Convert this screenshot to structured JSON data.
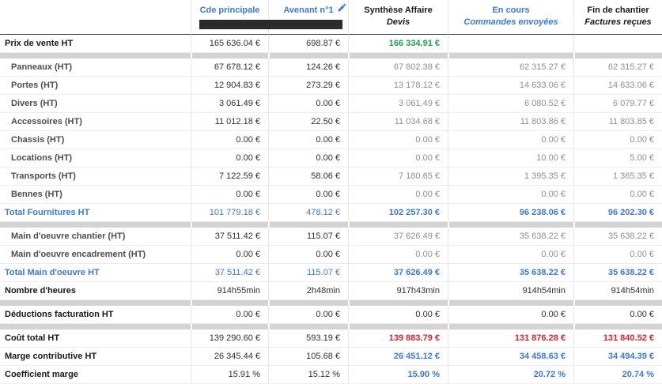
{
  "header": {
    "columns": [
      {
        "key": "labels",
        "label": ""
      },
      {
        "key": "cde-principale",
        "label": "Cde principale",
        "style": "blue",
        "redacted": true
      },
      {
        "key": "avenant-1",
        "label": "Avenant n°1",
        "style": "blue",
        "redacted": true,
        "has_edit_icon": true
      },
      {
        "key": "synthese-affaire",
        "line1": "Synthèse Affaire",
        "line2": "Devis",
        "style": "dark"
      },
      {
        "key": "en-cours",
        "line1": "En cours",
        "line2": "Commandes envoyées",
        "style": "blue"
      },
      {
        "key": "fin-de-chantier",
        "line1": "Fin de chantier",
        "line2": "Factures reçues",
        "style": "dark"
      }
    ],
    "edit_icon": "pencil-icon"
  },
  "colors": {
    "accent_blue": "#3b79dc",
    "positive_green": "#17a34a",
    "negative_red": "#e0242f",
    "redaction_bar": "#2b2b2b",
    "separator_gray": "#d3d3d3"
  },
  "table": {
    "rows": [
      {
        "type": "main",
        "label": "Prix de vente HT",
        "values": [
          "165 636.04 €",
          "698.87 €",
          "166 334.91 €",
          "",
          ""
        ],
        "styles": [
          "dark",
          "dark",
          "green",
          "none",
          "none"
        ]
      },
      {
        "type": "sep"
      },
      {
        "type": "sub",
        "label": "Panneaux (HT)",
        "values": [
          "67 678.12 €",
          "124.26 €",
          "67 802.38 €",
          "62 315.27 €",
          "62 315.27 €"
        ],
        "styles": [
          "dark",
          "dark",
          "gray",
          "gray",
          "gray"
        ]
      },
      {
        "type": "sub",
        "label": "Portes (HT)",
        "values": [
          "12 904.83 €",
          "273.29 €",
          "13 178.12 €",
          "14 633.06 €",
          "14 633.06 €"
        ],
        "styles": [
          "dark",
          "dark",
          "gray",
          "gray",
          "gray"
        ]
      },
      {
        "type": "sub",
        "label": "Divers (HT)",
        "values": [
          "3 061.49 €",
          "0.00 €",
          "3 061.49 €",
          "6 080.52 €",
          "6 079.77 €"
        ],
        "styles": [
          "dark",
          "dark",
          "gray",
          "gray",
          "gray"
        ]
      },
      {
        "type": "sub",
        "label": "Accessoires (HT)",
        "values": [
          "11 012.18 €",
          "22.50 €",
          "11 034.68 €",
          "11 803.86 €",
          "11 803.85 €"
        ],
        "styles": [
          "dark",
          "dark",
          "gray",
          "gray",
          "gray"
        ]
      },
      {
        "type": "sub",
        "label": "Chassis (HT)",
        "values": [
          "0.00 €",
          "0.00 €",
          "0.00 €",
          "0.00 €",
          "0.00 €"
        ],
        "styles": [
          "dark",
          "dark",
          "gray",
          "gray",
          "gray"
        ]
      },
      {
        "type": "sub",
        "label": "Locations (HT)",
        "values": [
          "0.00 €",
          "0.00 €",
          "0.00 €",
          "10.00 €",
          "5.00 €"
        ],
        "styles": [
          "dark",
          "dark",
          "gray",
          "gray",
          "gray"
        ]
      },
      {
        "type": "sub",
        "label": "Transports (HT)",
        "values": [
          "7 122.59 €",
          "58.06 €",
          "7 180.65 €",
          "1 395.35 €",
          "1 365.35 €"
        ],
        "styles": [
          "dark",
          "dark",
          "gray",
          "gray",
          "gray"
        ]
      },
      {
        "type": "sub",
        "label": "Bennes (HT)",
        "values": [
          "0.00 €",
          "0.00 €",
          "0.00 €",
          "0.00 €",
          "0.00 €"
        ],
        "styles": [
          "dark",
          "dark",
          "gray",
          "gray",
          "gray"
        ]
      },
      {
        "type": "total",
        "label": "Total Fournitures HT",
        "values": [
          "101 779.18 €",
          "478.12 €",
          "102 257.30 €",
          "96 238.06 €",
          "96 202.30 €"
        ],
        "styles": [
          "blue",
          "blue",
          "blueB",
          "blueB",
          "blueB"
        ]
      },
      {
        "type": "sep"
      },
      {
        "type": "sub",
        "label": "Main d'oeuvre chantier (HT)",
        "values": [
          "37 511.42 €",
          "115.07 €",
          "37 626.49 €",
          "35 638.22 €",
          "35 638.22 €"
        ],
        "styles": [
          "dark",
          "dark",
          "gray",
          "gray",
          "gray"
        ]
      },
      {
        "type": "sub",
        "label": "Main d'oeuvre encadrement (HT)",
        "values": [
          "0.00 €",
          "0.00 €",
          "0.00 €",
          "0.00 €",
          "0.00 €"
        ],
        "styles": [
          "dark",
          "dark",
          "gray",
          "gray",
          "gray"
        ]
      },
      {
        "type": "total",
        "label": "Total Main d'oeuvre HT",
        "values": [
          "37 511.42 €",
          "115.07 €",
          "37 626.49 €",
          "35 638.22 €",
          "35 638.22 €"
        ],
        "styles": [
          "blue",
          "blue",
          "blueB",
          "blueB",
          "blueB"
        ]
      },
      {
        "type": "main",
        "label": "Nombre d'heures",
        "values": [
          "914h55min",
          "2h48min",
          "917h43min",
          "914h54min",
          "914h54min"
        ],
        "styles": [
          "dark",
          "dark",
          "dark",
          "dark",
          "dark"
        ]
      },
      {
        "type": "sep"
      },
      {
        "type": "main",
        "label": "Déductions facturation HT",
        "values": [
          "0.00 €",
          "0.00 €",
          "0.00 €",
          "0.00 €",
          "0.00 €"
        ],
        "styles": [
          "dark",
          "dark",
          "dark",
          "dark",
          "dark"
        ]
      },
      {
        "type": "sep"
      },
      {
        "type": "main",
        "label": "Coût total HT",
        "values": [
          "139 290.60 €",
          "593.19 €",
          "139 883.79 €",
          "131 876.28 €",
          "131 840.52 €"
        ],
        "styles": [
          "dark",
          "dark",
          "red",
          "red",
          "red"
        ]
      },
      {
        "type": "main",
        "label": "Marge contributive HT",
        "values": [
          "26 345.44 €",
          "105.68 €",
          "26 451.12 €",
          "34 458.63 €",
          "34 494.39 €"
        ],
        "styles": [
          "dark",
          "dark",
          "blueB",
          "blueB",
          "blueB"
        ]
      },
      {
        "type": "main",
        "label": "Coefficient marge",
        "values": [
          "15.91 %",
          "15.12 %",
          "15.90 %",
          "20.72 %",
          "20.74 %"
        ],
        "styles": [
          "dark",
          "dark",
          "blueB",
          "blueB",
          "blueB"
        ]
      }
    ]
  }
}
